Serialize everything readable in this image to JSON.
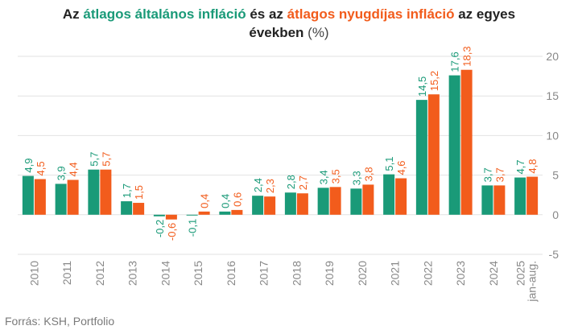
{
  "title": {
    "part1": "Az",
    "general": "átlagos általános infláció",
    "part2": "és az",
    "pension": "átlagos nyugdíjas infláció",
    "part3": "az egyes",
    "line2": "években",
    "unit": "(%)"
  },
  "source": "Forrás: KSH, Portfolio",
  "colors": {
    "general": "#1a9a78",
    "pension": "#f25c1c",
    "grid": "#e2e2e2",
    "tick": "#888888"
  },
  "chart_data": {
    "type": "bar",
    "categories": [
      "2010",
      "2011",
      "2012",
      "2013",
      "2014",
      "2015",
      "2016",
      "2017",
      "2018",
      "2019",
      "2020",
      "2021",
      "2022",
      "2023",
      "2024",
      "2025\njan-aug."
    ],
    "series": [
      {
        "name": "átlagos általános infláció",
        "values": [
          4.9,
          3.9,
          5.7,
          1.7,
          -0.2,
          -0.1,
          0.4,
          2.4,
          2.8,
          3.4,
          3.3,
          5.1,
          14.5,
          17.6,
          3.7,
          4.7
        ],
        "labels": [
          "4,9",
          "3,9",
          "5,7",
          "1,7",
          "-0,2",
          "-0,1",
          "0,4",
          "2,4",
          "2,8",
          "3,4",
          "3,3",
          "5,1",
          "14,5",
          "17,6",
          "3,7",
          "4,7"
        ]
      },
      {
        "name": "átlagos nyugdíjas infláció",
        "values": [
          4.5,
          4.4,
          5.7,
          1.5,
          -0.6,
          0.4,
          0.6,
          2.3,
          2.7,
          3.5,
          3.8,
          4.6,
          15.2,
          18.3,
          3.7,
          4.8
        ],
        "labels": [
          "4,5",
          "4,4",
          "5,7",
          "1,5",
          "-0,6",
          "0,4",
          "0,6",
          "2,3",
          "2,7",
          "3,5",
          "3,8",
          "4,6",
          "15,2",
          "18,3",
          "3,7",
          "4,8"
        ]
      }
    ],
    "ylim": [
      -5,
      20
    ],
    "yticks": [
      -5,
      0,
      5,
      10,
      15,
      20
    ],
    "y_axis_side": "right",
    "grid": true,
    "legend": "in-title"
  }
}
